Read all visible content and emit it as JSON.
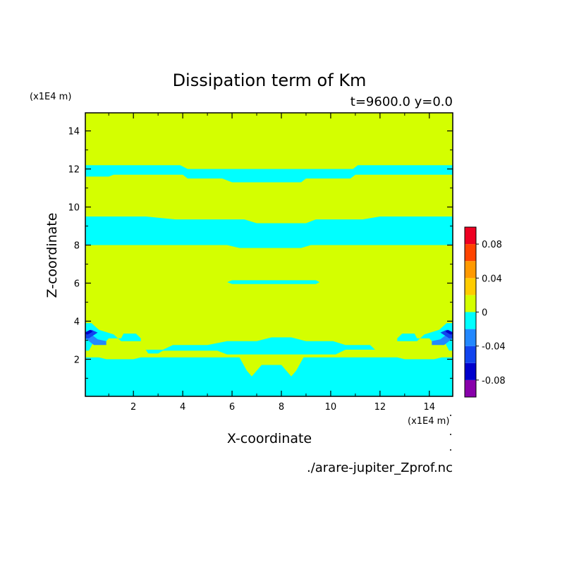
{
  "chart_data": {
    "type": "heatmap",
    "title": "Dissipation term of Km",
    "subtitle": "t=9600.0 y=0.0",
    "xlabel": "X-coordinate",
    "ylabel": "Z-coordinate",
    "x_unit": "(x1E4 m)",
    "y_unit": "(x1E4 m)",
    "source": "./arare-jupiter_Zprof.nc",
    "xlim": [
      0.05,
      14.95
    ],
    "ylim": [
      0.05,
      14.95
    ],
    "x_ticks": [
      2,
      4,
      6,
      8,
      10,
      12,
      14
    ],
    "y_ticks": [
      2,
      4,
      6,
      8,
      10,
      12,
      14
    ],
    "colorbar": {
      "levels": [
        -0.1,
        -0.08,
        -0.06,
        -0.04,
        -0.02,
        0,
        0.02,
        0.04,
        0.06,
        0.08,
        0.1
      ],
      "colors": [
        "#8800aa",
        "#0000cc",
        "#1144ee",
        "#2288ff",
        "#00ffff",
        "#d4ff00",
        "#ffcc00",
        "#ff9900",
        "#ff4400",
        "#ee0022",
        "#ffaaaa"
      ],
      "tick_labels": [
        "-0.08",
        "-0.04",
        "0",
        "0.04",
        "0.08"
      ],
      "tick_values": [
        -0.08,
        -0.04,
        0,
        0.04,
        0.08
      ]
    },
    "background_color": "#d4ff00",
    "regions": [
      {
        "color": "#00ffff",
        "points": [
          [
            0.05,
            0.05
          ],
          [
            14.95,
            0.05
          ],
          [
            14.95,
            2.1
          ],
          [
            14.5,
            2.1
          ],
          [
            14.2,
            2.0
          ],
          [
            13.0,
            2.0
          ],
          [
            12.7,
            2.1
          ],
          [
            8.9,
            2.1
          ],
          [
            8.6,
            1.4
          ],
          [
            8.4,
            1.1
          ],
          [
            8.0,
            1.7
          ],
          [
            7.2,
            1.7
          ],
          [
            6.8,
            1.1
          ],
          [
            6.6,
            1.4
          ],
          [
            6.3,
            2.1
          ],
          [
            2.3,
            2.1
          ],
          [
            2.0,
            2.0
          ],
          [
            0.9,
            2.0
          ],
          [
            0.6,
            2.1
          ],
          [
            0.05,
            2.1
          ]
        ]
      },
      {
        "color": "#00ffff",
        "points": [
          [
            2.5,
            2.5
          ],
          [
            3.2,
            2.5
          ],
          [
            3.6,
            2.75
          ],
          [
            5.0,
            2.75
          ],
          [
            5.8,
            2.95
          ],
          [
            7.0,
            2.95
          ],
          [
            7.6,
            3.15
          ],
          [
            8.4,
            3.15
          ],
          [
            9.0,
            2.95
          ],
          [
            10.1,
            2.95
          ],
          [
            10.6,
            2.75
          ],
          [
            11.6,
            2.75
          ],
          [
            11.8,
            2.5
          ],
          [
            10.6,
            2.5
          ],
          [
            10.2,
            2.25
          ],
          [
            5.8,
            2.25
          ],
          [
            5.4,
            2.45
          ],
          [
            3.2,
            2.45
          ],
          [
            3.0,
            2.3
          ],
          [
            2.6,
            2.3
          ]
        ]
      },
      {
        "color": "#00ffff",
        "points": [
          [
            0.05,
            2.45
          ],
          [
            0.2,
            2.45
          ],
          [
            0.4,
            2.95
          ],
          [
            0.9,
            2.95
          ],
          [
            1.0,
            3.1
          ],
          [
            1.5,
            3.1
          ],
          [
            1.6,
            3.35
          ],
          [
            2.1,
            3.35
          ],
          [
            2.3,
            3.1
          ],
          [
            2.3,
            2.95
          ],
          [
            1.5,
            2.95
          ],
          [
            1.2,
            3.3
          ],
          [
            0.6,
            3.55
          ],
          [
            0.3,
            3.9
          ],
          [
            0.05,
            3.9
          ]
        ]
      },
      {
        "color": "#00ffff",
        "points": [
          [
            14.95,
            2.45
          ],
          [
            14.8,
            2.45
          ],
          [
            14.6,
            2.95
          ],
          [
            14.1,
            2.95
          ],
          [
            14.0,
            3.1
          ],
          [
            13.5,
            3.1
          ],
          [
            13.4,
            3.35
          ],
          [
            12.9,
            3.35
          ],
          [
            12.7,
            3.1
          ],
          [
            12.7,
            2.95
          ],
          [
            13.5,
            2.95
          ],
          [
            13.8,
            3.3
          ],
          [
            14.4,
            3.55
          ],
          [
            14.7,
            3.9
          ],
          [
            14.95,
            3.9
          ]
        ]
      },
      {
        "color": "#2288ff",
        "points": [
          [
            0.05,
            3.1
          ],
          [
            0.4,
            2.75
          ],
          [
            0.9,
            2.75
          ],
          [
            0.9,
            2.95
          ],
          [
            0.55,
            3.05
          ],
          [
            0.3,
            3.3
          ],
          [
            0.05,
            3.3
          ]
        ]
      },
      {
        "color": "#2288ff",
        "points": [
          [
            14.95,
            3.1
          ],
          [
            14.6,
            2.75
          ],
          [
            14.1,
            2.75
          ],
          [
            14.1,
            2.95
          ],
          [
            14.45,
            3.05
          ],
          [
            14.7,
            3.3
          ],
          [
            14.95,
            3.3
          ]
        ]
      },
      {
        "color": "#1144ee",
        "points": [
          [
            0.05,
            3.25
          ],
          [
            0.3,
            3.55
          ],
          [
            0.55,
            3.4
          ],
          [
            0.2,
            3.1
          ],
          [
            0.05,
            3.1
          ]
        ]
      },
      {
        "color": "#1144ee",
        "points": [
          [
            14.95,
            3.25
          ],
          [
            14.7,
            3.55
          ],
          [
            14.45,
            3.4
          ],
          [
            14.8,
            3.1
          ],
          [
            14.95,
            3.1
          ]
        ]
      },
      {
        "color": "#0000cc",
        "points": [
          [
            0.05,
            3.42
          ],
          [
            0.25,
            3.55
          ],
          [
            0.35,
            3.45
          ],
          [
            0.15,
            3.3
          ],
          [
            0.05,
            3.3
          ]
        ]
      },
      {
        "color": "#0000cc",
        "points": [
          [
            14.95,
            3.42
          ],
          [
            14.75,
            3.55
          ],
          [
            14.65,
            3.45
          ],
          [
            14.85,
            3.3
          ],
          [
            14.95,
            3.3
          ]
        ]
      },
      {
        "color": "#00ffff",
        "points": [
          [
            5.8,
            6.05
          ],
          [
            6.0,
            5.95
          ],
          [
            9.4,
            5.95
          ],
          [
            9.55,
            6.05
          ],
          [
            9.4,
            6.15
          ],
          [
            6.0,
            6.15
          ]
        ]
      },
      {
        "color": "#00ffff",
        "points": [
          [
            0.05,
            8.0
          ],
          [
            5.8,
            8.0
          ],
          [
            6.3,
            7.85
          ],
          [
            8.8,
            7.85
          ],
          [
            9.2,
            8.0
          ],
          [
            14.95,
            8.0
          ],
          [
            14.95,
            9.5
          ],
          [
            12.0,
            9.5
          ],
          [
            11.3,
            9.35
          ],
          [
            9.4,
            9.35
          ],
          [
            9.0,
            9.15
          ],
          [
            7.0,
            9.15
          ],
          [
            6.5,
            9.35
          ],
          [
            3.7,
            9.35
          ],
          [
            2.5,
            9.5
          ],
          [
            0.05,
            9.5
          ]
        ]
      },
      {
        "color": "#00ffff",
        "points": [
          [
            0.05,
            11.6
          ],
          [
            1.0,
            11.6
          ],
          [
            1.2,
            11.7
          ],
          [
            4.0,
            11.7
          ],
          [
            4.2,
            11.5
          ],
          [
            5.6,
            11.5
          ],
          [
            6.0,
            11.3
          ],
          [
            8.8,
            11.3
          ],
          [
            9.0,
            11.5
          ],
          [
            10.8,
            11.5
          ],
          [
            11.0,
            11.7
          ],
          [
            14.95,
            11.7
          ],
          [
            14.95,
            12.2
          ],
          [
            11.1,
            12.2
          ],
          [
            10.9,
            12.0
          ],
          [
            4.2,
            12.0
          ],
          [
            3.9,
            12.2
          ],
          [
            0.05,
            12.2
          ]
        ]
      }
    ]
  }
}
